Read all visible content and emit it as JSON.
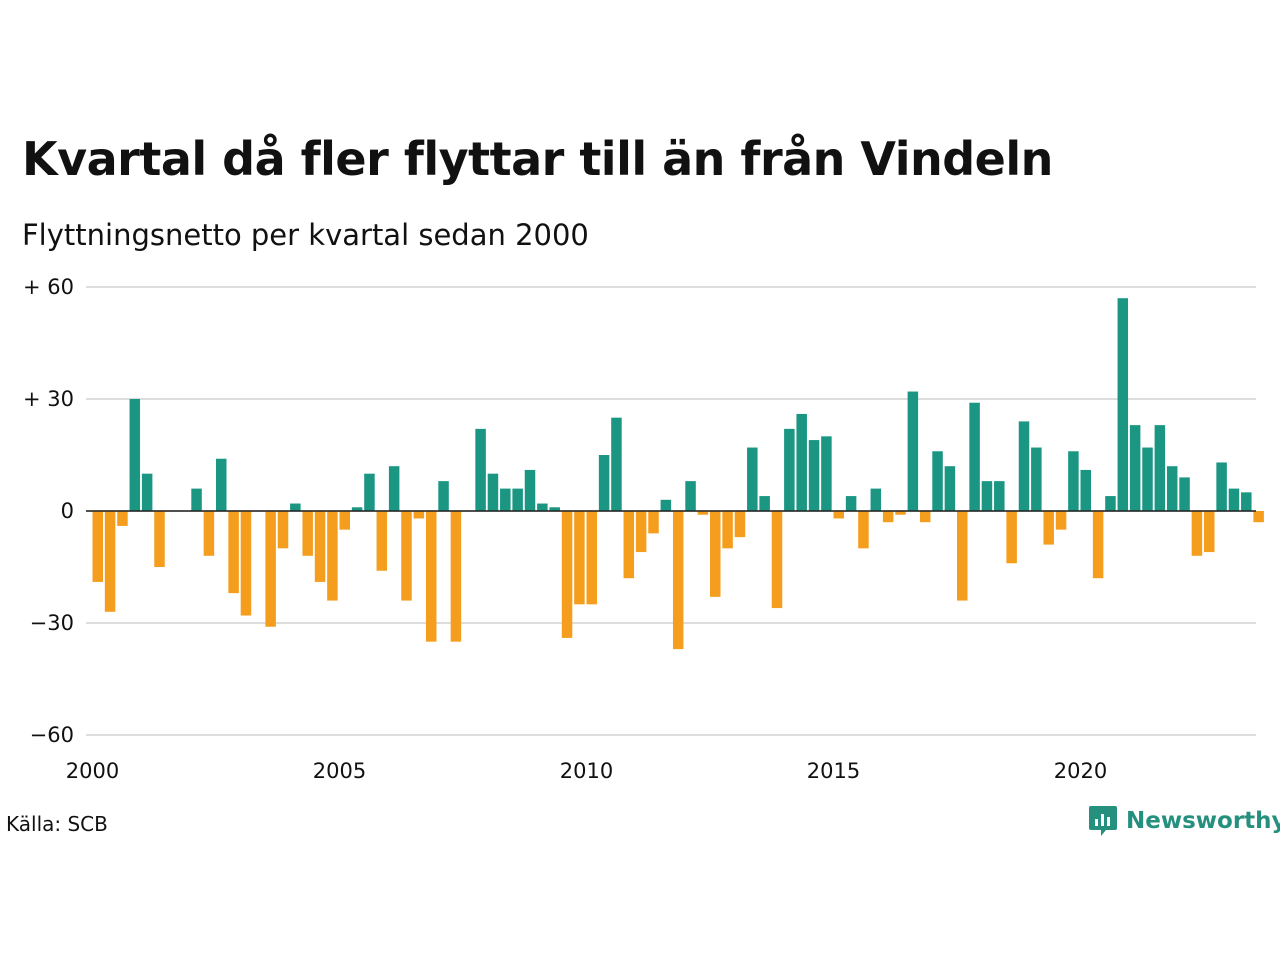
{
  "header": {
    "title": "Kvartal då fler flyttar till än från Vindeln",
    "subtitle": "Flyttningsnetto per kvartal sedan 2000"
  },
  "footer": {
    "source": "Källa: SCB",
    "brand": "Newsworthy"
  },
  "colors": {
    "positive": "#1b9683",
    "negative": "#f59e1e",
    "grid": "#dddddd",
    "brand": "#26907f"
  },
  "chart_data": {
    "type": "bar",
    "title": "Kvartal då fler flyttar till än från Vindeln",
    "subtitle": "Flyttningsnetto per kvartal sedan 2000",
    "ylim": [
      -60,
      60
    ],
    "yticks": [
      {
        "value": 60,
        "label": "+ 60"
      },
      {
        "value": 30,
        "label": "+ 30"
      },
      {
        "value": 0,
        "label": "0"
      },
      {
        "value": -30,
        "label": "−30"
      },
      {
        "value": -60,
        "label": "−60"
      }
    ],
    "xticks": [
      "2000",
      "2005",
      "2010",
      "2015",
      "2020"
    ],
    "grid": true,
    "start_year": 2000,
    "values": [
      -19,
      -27,
      -4,
      30,
      10,
      -15,
      0,
      0,
      6,
      -12,
      14,
      -22,
      -28,
      0,
      -31,
      -10,
      2,
      -12,
      -19,
      -24,
      -5,
      1,
      10,
      -16,
      12,
      -24,
      -2,
      -35,
      8,
      -35,
      0,
      22,
      10,
      6,
      6,
      11,
      2,
      1,
      -34,
      -25,
      -25,
      15,
      25,
      -18,
      -11,
      -6,
      3,
      -37,
      8,
      -1,
      -23,
      -10,
      -7,
      17,
      4,
      -26,
      22,
      26,
      19,
      20,
      -2,
      4,
      -10,
      6,
      -3,
      -1,
      32,
      -3,
      16,
      12,
      -24,
      29,
      8,
      8,
      -14,
      24,
      17,
      -9,
      -5,
      16,
      11,
      -18,
      4,
      57,
      23,
      17,
      23,
      12,
      9,
      -12,
      -11,
      13,
      6,
      5,
      -3
    ]
  }
}
